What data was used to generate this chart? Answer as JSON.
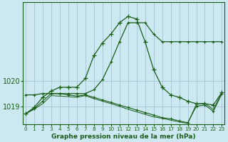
{
  "title": "Graphe pression niveau de la mer (hPa)",
  "background_color": "#cce8f0",
  "line_color": "#1a5c1a",
  "grid_color": "#aac8d8",
  "hours": [
    0,
    1,
    2,
    3,
    4,
    5,
    6,
    7,
    8,
    9,
    10,
    11,
    12,
    13,
    14,
    15,
    16,
    17,
    18,
    19,
    20,
    21,
    22,
    23
  ],
  "main_line": [
    1018.7,
    1018.95,
    1019.35,
    1019.6,
    1019.75,
    1019.75,
    1019.75,
    1020.1,
    1021.0,
    1021.5,
    1021.85,
    1022.3,
    1022.55,
    1022.45,
    1021.55,
    1020.45,
    1019.75,
    1019.45,
    1019.35,
    1019.2,
    1019.1,
    1019.1,
    1019.05,
    1019.55
  ],
  "upper_line": [
    1019.45,
    1019.45,
    1019.5,
    1019.5,
    1019.5,
    1019.5,
    1019.5,
    1019.5,
    1019.65,
    1020.05,
    1020.75,
    1021.55,
    1022.3,
    1022.3,
    1022.3,
    1021.85,
    1021.55,
    1021.55,
    1021.55,
    1021.55,
    1021.55,
    1021.55,
    1021.55,
    1021.55
  ],
  "lower_line1": [
    1018.7,
    1018.9,
    1019.2,
    1019.5,
    1019.5,
    1019.45,
    1019.4,
    1019.45,
    1019.35,
    1019.25,
    1019.15,
    1019.05,
    1018.95,
    1018.85,
    1018.75,
    1018.65,
    1018.55,
    1018.5,
    1018.42,
    1018.35,
    1019.0,
    1019.05,
    1018.8,
    1019.5
  ],
  "lower_line2": [
    1018.7,
    1018.88,
    1019.1,
    1019.42,
    1019.4,
    1019.38,
    1019.35,
    1019.42,
    1019.3,
    1019.2,
    1019.1,
    1019.0,
    1018.88,
    1018.78,
    1018.68,
    1018.58,
    1018.52,
    1018.45,
    1018.38,
    1018.32,
    1019.08,
    1019.12,
    1018.87,
    1019.55
  ],
  "yticks": [
    1019,
    1020
  ],
  "ylim": [
    1018.3,
    1023.1
  ],
  "xlim": [
    -0.3,
    23.3
  ],
  "xtick_labels": [
    "0",
    "1",
    "2",
    "3",
    "4",
    "5",
    "6",
    "7",
    "8",
    "9",
    "10",
    "11",
    "12",
    "13",
    "14",
    "15",
    "16",
    "17",
    "18",
    "19",
    "20",
    "21",
    "22",
    "23"
  ]
}
